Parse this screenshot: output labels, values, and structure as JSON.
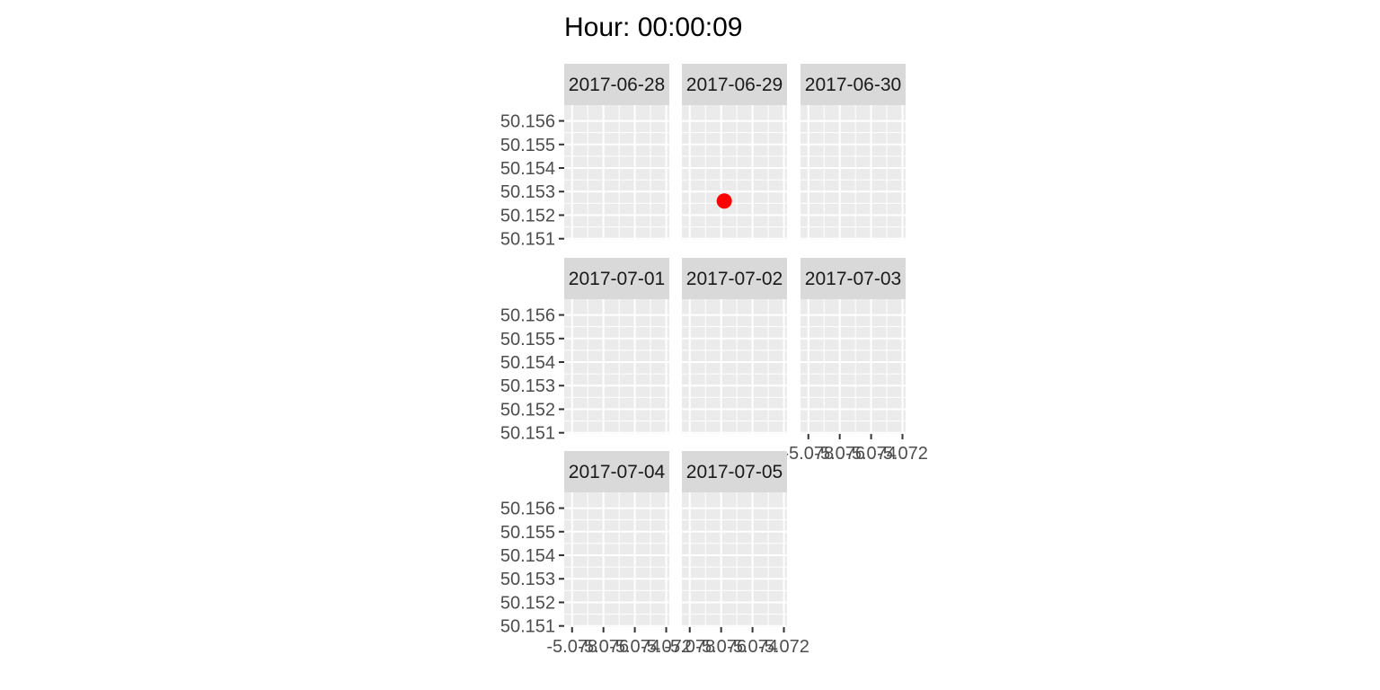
{
  "chart_data": {
    "type": "scatter",
    "title": "Hour: 00:00:09",
    "layout": "facet-wrap",
    "ncol": 3,
    "xlabel": "",
    "ylabel": "",
    "xlim": [
      -5.0785,
      -5.0718
    ],
    "ylim": [
      50.15095,
      50.15667
    ],
    "x_ticks": [
      -5.078,
      -5.076,
      -5.074,
      -5.072
    ],
    "y_ticks": [
      50.151,
      50.152,
      50.153,
      50.154,
      50.155,
      50.156
    ],
    "x_tick_labels": [
      "-5.078",
      "-5.076",
      "-5.074",
      "-5.072"
    ],
    "y_tick_labels": [
      "50.151",
      "50.152",
      "50.153",
      "50.154",
      "50.155",
      "50.156"
    ],
    "grid": true,
    "legend": "none",
    "point_color": "#ff0000",
    "panel_background": "#ebebeb",
    "strip_background": "#d9d9d9",
    "panels": [
      {
        "label": "2017-06-28",
        "points": []
      },
      {
        "label": "2017-06-29",
        "points": [
          {
            "x": -5.0758,
            "y": 50.1526
          }
        ]
      },
      {
        "label": "2017-06-30",
        "points": []
      },
      {
        "label": "2017-07-01",
        "points": []
      },
      {
        "label": "2017-07-02",
        "points": []
      },
      {
        "label": "2017-07-03",
        "points": []
      },
      {
        "label": "2017-07-04",
        "points": []
      },
      {
        "label": "2017-07-05",
        "points": []
      }
    ]
  }
}
